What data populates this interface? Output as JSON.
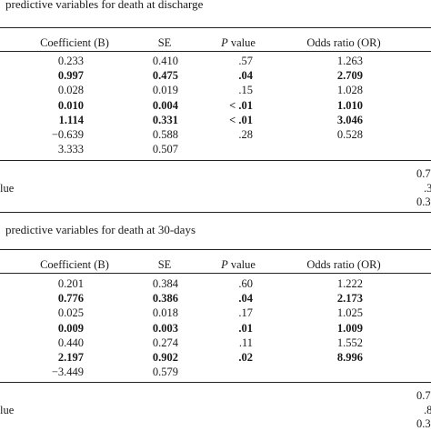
{
  "table1": {
    "caption": "predictive variables for death at discharge",
    "headers": {
      "coef": "Coefficient (B)",
      "se": "SE",
      "p_italic": "P",
      "p_rest": " value",
      "or": "Odds ratio (OR)"
    },
    "rows": [
      {
        "coef": "0.233",
        "se": "0.410",
        "p": ".57",
        "or": "1.263",
        "bold": false
      },
      {
        "coef": "0.997",
        "se": "0.475",
        "p": ".04",
        "or": "2.709",
        "bold": true
      },
      {
        "coef": "0.028",
        "se": "0.019",
        "p": ".15",
        "or": "1.028",
        "bold": false
      },
      {
        "coef": "0.010",
        "se": "0.004",
        "p": "< .01",
        "or": "1.010",
        "bold": true
      },
      {
        "coef": "1.114",
        "se": "0.331",
        "p": "< .01",
        "or": "3.046",
        "bold": true
      },
      {
        "coef": "−0.639",
        "se": "0.588",
        "p": ".28",
        "or": "0.528",
        "bold": false
      },
      {
        "coef": "3.333",
        "se": "0.507",
        "p": "",
        "or": "",
        "bold": false
      }
    ],
    "footer": {
      "label": "lue",
      "right_values": [
        "0.7",
        ".3",
        "0.3"
      ]
    }
  },
  "table2": {
    "caption": "predictive variables for death at 30-days",
    "headers": {
      "coef": "Coefficient (B)",
      "se": "SE",
      "p_italic": "P",
      "p_rest": " value",
      "or": "Odds ratio (OR)"
    },
    "rows": [
      {
        "coef": "0.201",
        "se": "0.384",
        "p": ".60",
        "or": "1.222",
        "bold": false
      },
      {
        "coef": "0.776",
        "se": "0.386",
        "p": ".04",
        "or": "2.173",
        "bold": true
      },
      {
        "coef": "0.025",
        "se": "0.018",
        "p": ".17",
        "or": "1.025",
        "bold": false
      },
      {
        "coef": "0.009",
        "se": "0.003",
        "p": ".01",
        "or": "1.009",
        "bold": true
      },
      {
        "coef": "0.440",
        "se": "0.274",
        "p": ".11",
        "or": "1.552",
        "bold": false
      },
      {
        "coef": "2.197",
        "se": "0.902",
        "p": ".02",
        "or": "8.996",
        "bold": true
      },
      {
        "coef": "−3.449",
        "se": "0.579",
        "p": "",
        "or": "",
        "bold": false
      }
    ],
    "footer": {
      "label": "lue",
      "right_values": [
        "0.7",
        ".8",
        "0.3"
      ]
    }
  }
}
